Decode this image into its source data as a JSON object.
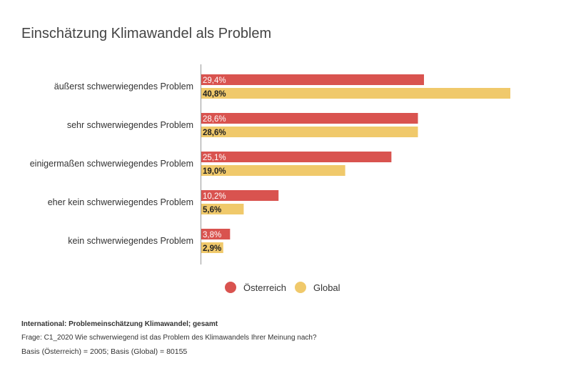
{
  "chart_data": {
    "type": "bar",
    "orientation": "horizontal",
    "title": "Einschätzung Klimawandel als Problem",
    "categories": [
      "äußerst schwerwiegendes Problem",
      "sehr schwerwiegendes Problem",
      "einigermaßen schwerwiegendes Problem",
      "eher kein schwerwiegendes Problem",
      "kein schwerwiegendes Problem"
    ],
    "series": [
      {
        "name": "Österreich",
        "color": "#d9534f",
        "values": [
          29.4,
          28.6,
          25.1,
          10.2,
          3.8
        ],
        "labels": [
          "29,4%",
          "28,6%",
          "25,1%",
          "10,2%",
          "3,8%"
        ]
      },
      {
        "name": "Global",
        "color": "#f0c96b",
        "values": [
          40.8,
          28.6,
          19.0,
          5.6,
          2.9
        ],
        "labels": [
          "40,8%",
          "28,6%",
          "19,0%",
          "5,6%",
          "2,9%"
        ]
      }
    ],
    "xlim": [
      0,
      45
    ],
    "legend_position": "bottom-center"
  },
  "footnotes": {
    "line1": "International: Problemeinschätzung Klimawandel; gesamt",
    "line2": "Frage: C1_2020 Wie schwerwiegend ist das Problem des Klimawandels Ihrer Meinung nach?",
    "line3": "Basis (Österreich) = 2005; Basis (Global) = 80155"
  }
}
